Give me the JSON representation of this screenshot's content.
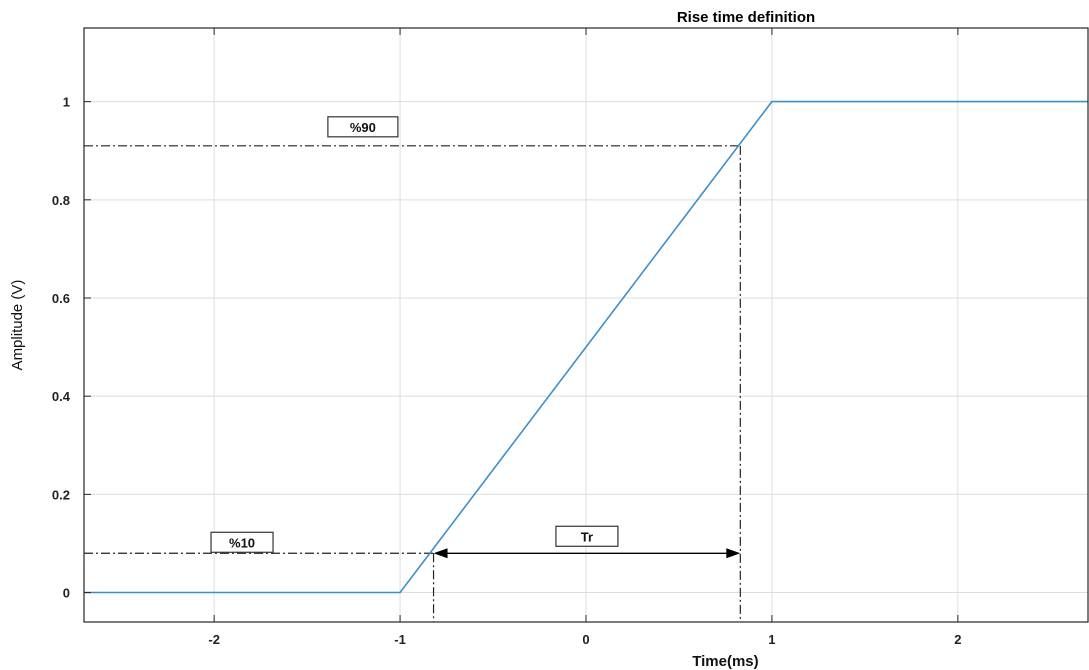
{
  "chart_data": {
    "type": "line",
    "title": "Rise time definition",
    "xlabel": "Time(ms)",
    "ylabel": "Amplitude (V)",
    "xlim": [
      -2.7,
      2.7
    ],
    "ylim": [
      -0.06,
      1.15
    ],
    "xticks": [
      -2,
      -1,
      0,
      1,
      2
    ],
    "yticks": [
      0,
      0.2,
      0.4,
      0.6,
      0.8,
      1
    ],
    "xtick_labels": [
      "-2",
      "-1",
      "0",
      "1",
      "2"
    ],
    "ytick_labels": [
      "0",
      "0.2",
      "0.4",
      "0.6",
      "0.8",
      "1"
    ],
    "grid": true,
    "series": [
      {
        "x": [
          -2.7,
          -1,
          1,
          2.7
        ],
        "y": [
          0,
          0,
          1,
          1
        ],
        "color": "#3d8fc8"
      }
    ],
    "annotations": {
      "low": {
        "label": "%10",
        "x": -0.82,
        "y": 0.08,
        "label_x": -1.85
      },
      "high": {
        "label": "%90",
        "x": 0.83,
        "y": 0.91,
        "label_x": -1.2
      },
      "rise": {
        "label": "Tr",
        "x_start": -0.82,
        "x_end": 0.83,
        "y": 0.08
      }
    }
  }
}
